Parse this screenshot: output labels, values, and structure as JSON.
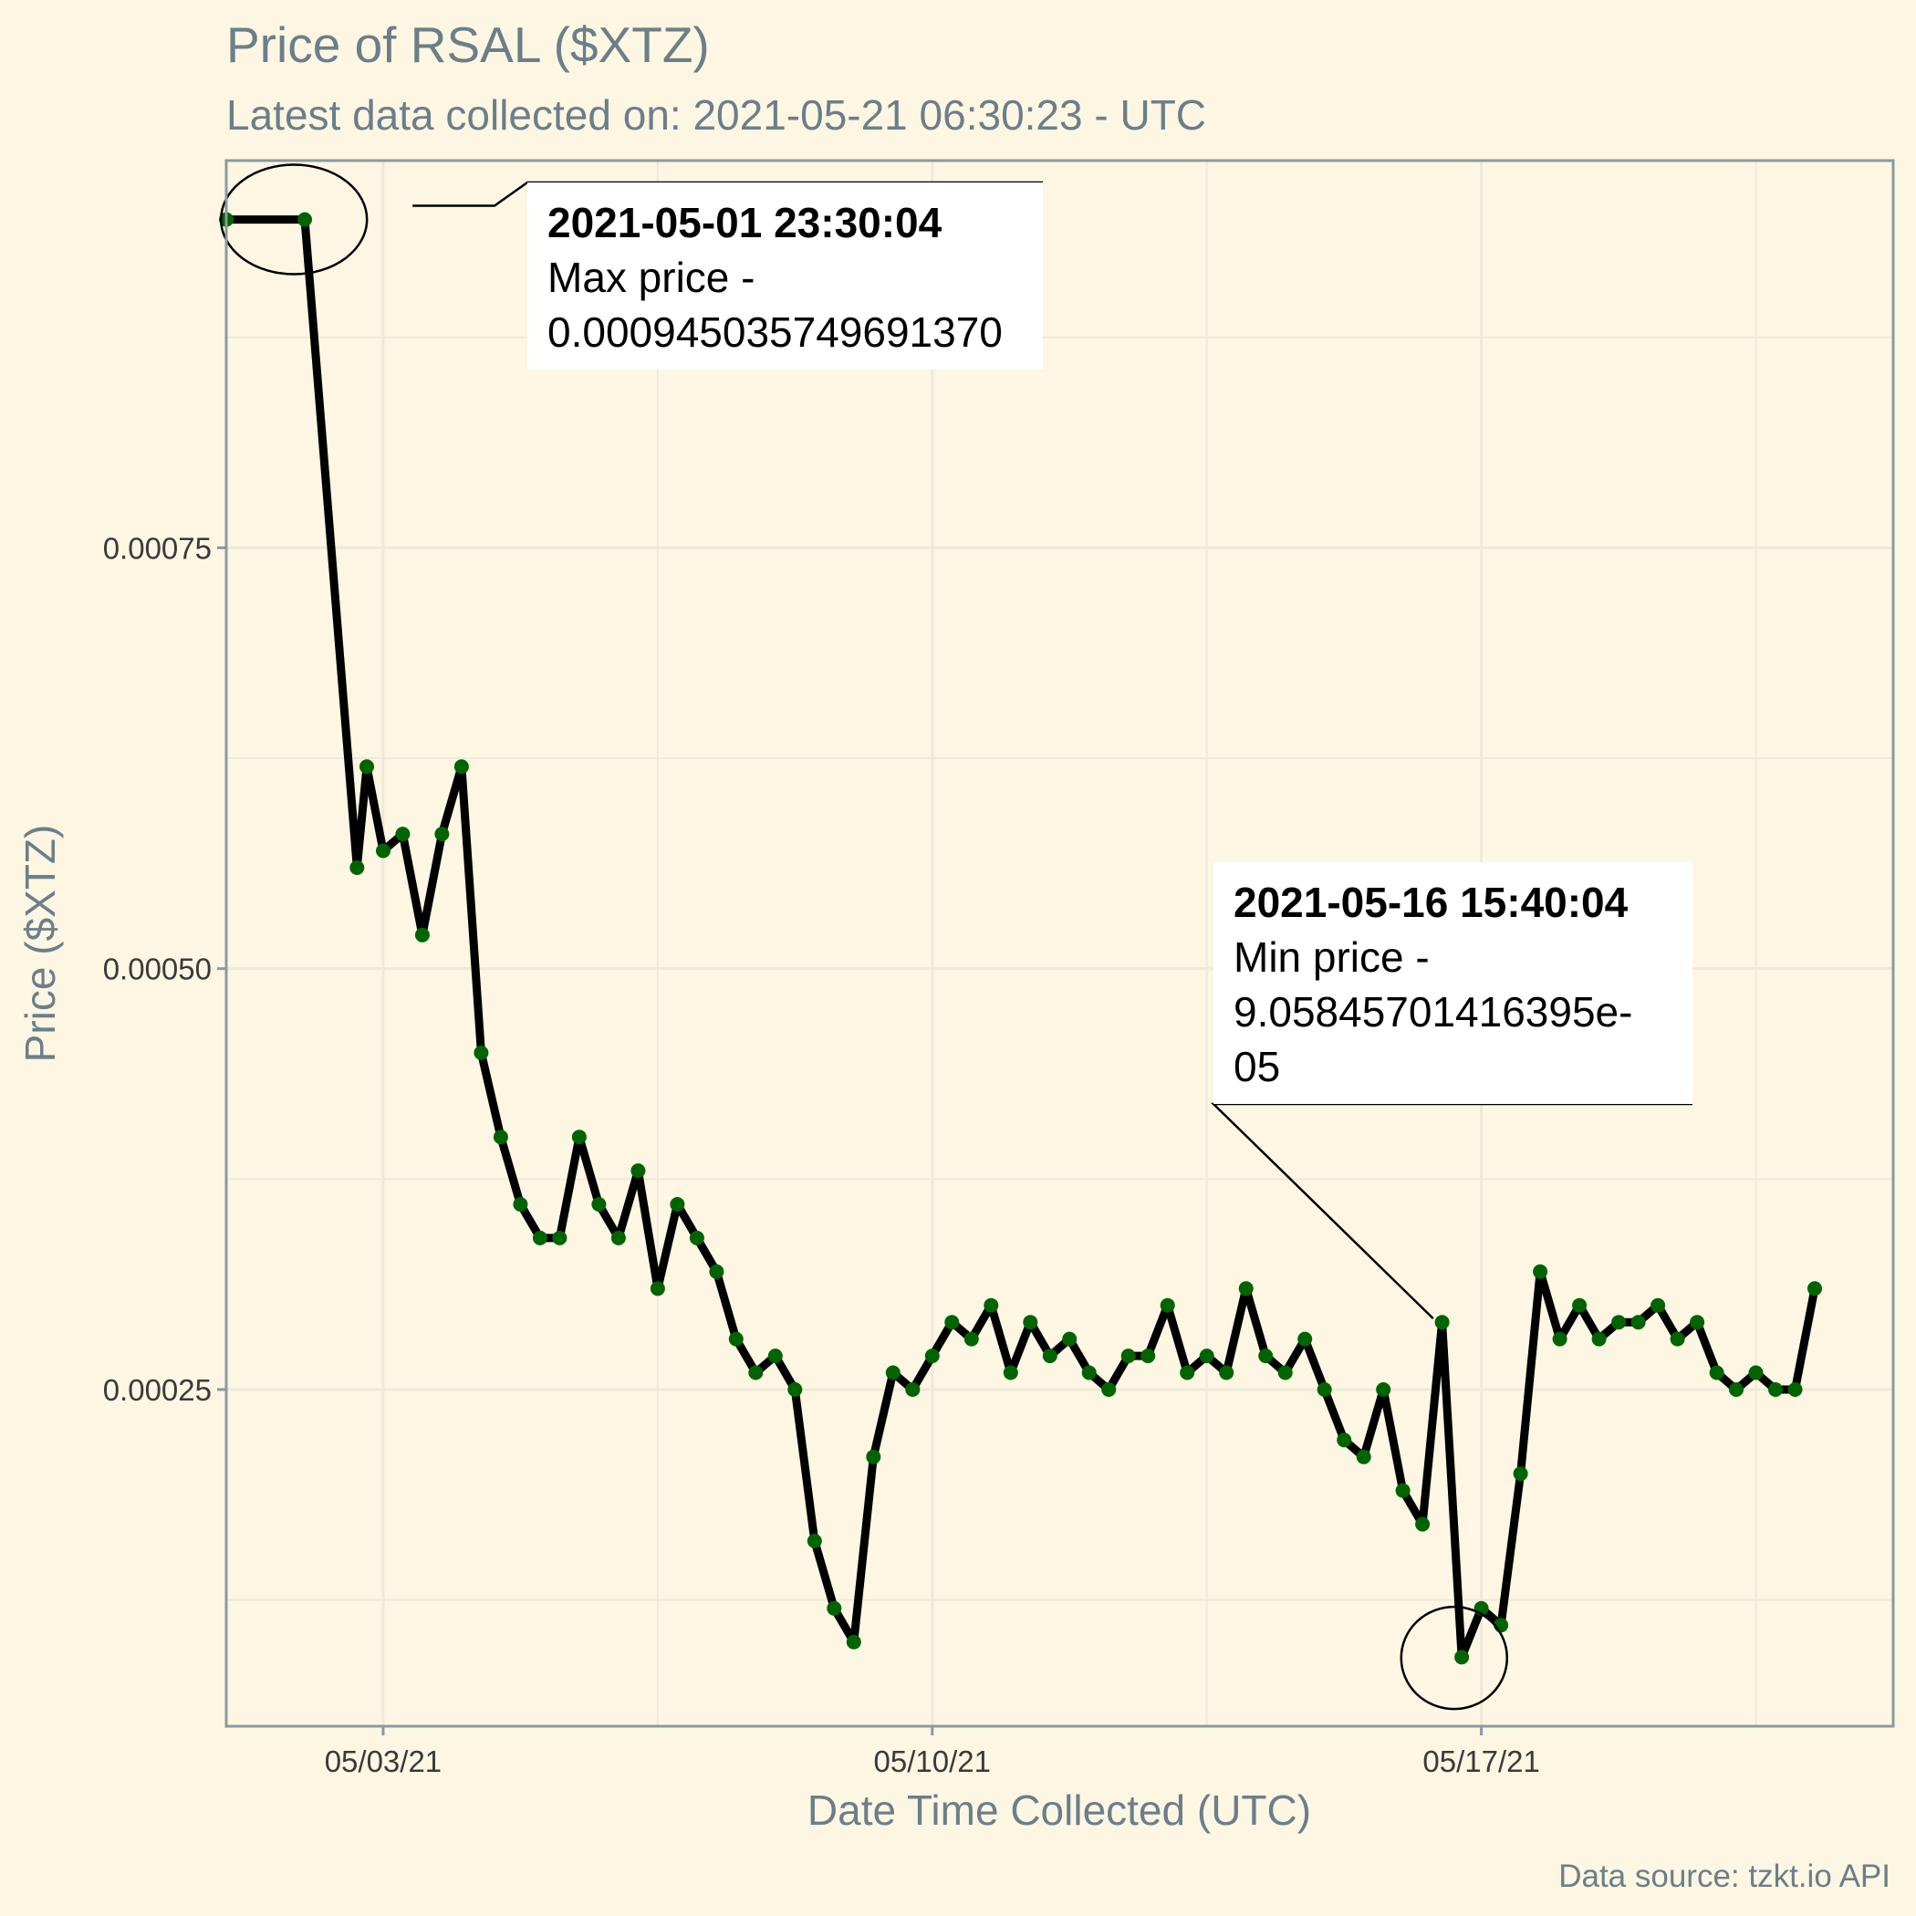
{
  "chart_data": {
    "type": "line",
    "title": "Price of RSAL ($XTZ)",
    "subtitle": "Latest data collected on: 2021-05-21 06:30:23  - UTC",
    "xlabel": "Date Time Collected (UTC)",
    "ylabel": "Price ($XTZ)",
    "caption": "Data source: tzkt.io API",
    "x_range": [
      "2021-05-01 00:00",
      "2021-05-22 06:00"
    ],
    "ylim": [
      5e-05,
      0.00098
    ],
    "x_ticks": [
      {
        "x": "2021-05-03",
        "label": "05/03/21"
      },
      {
        "x": "2021-05-10",
        "label": "05/10/21"
      },
      {
        "x": "2021-05-17",
        "label": "05/17/21"
      }
    ],
    "y_ticks": [
      {
        "y": 0.00025,
        "label": "0.00025"
      },
      {
        "y": 0.0005,
        "label": "0.00050"
      },
      {
        "y": 0.00075,
        "label": "0.00075"
      }
    ],
    "grid": true,
    "line_color": "#000000",
    "point_color": "#006400",
    "series": [
      {
        "x": [
          "2021-05-01 00:00",
          "2021-05-02 00:00",
          "2021-05-02 16:00",
          "2021-05-02 19:00",
          "2021-05-03 00:00",
          "2021-05-03 06:00",
          "2021-05-03 12:00",
          "2021-05-03 18:00",
          "2021-05-04 00:00",
          "2021-05-04 06:00",
          "2021-05-04 12:00",
          "2021-05-04 18:00",
          "2021-05-05 00:00",
          "2021-05-05 06:00",
          "2021-05-05 12:00",
          "2021-05-05 18:00",
          "2021-05-06 00:00",
          "2021-05-06 06:00",
          "2021-05-06 12:00",
          "2021-05-06 18:00",
          "2021-05-07 00:00",
          "2021-05-07 06:00",
          "2021-05-07 12:00",
          "2021-05-07 18:00",
          "2021-05-08 00:00",
          "2021-05-08 06:00",
          "2021-05-08 12:00",
          "2021-05-08 18:00",
          "2021-05-09 00:00",
          "2021-05-09 06:00",
          "2021-05-09 12:00",
          "2021-05-09 18:00",
          "2021-05-10 00:00",
          "2021-05-10 06:00",
          "2021-05-10 12:00",
          "2021-05-10 18:00",
          "2021-05-11 00:00",
          "2021-05-11 06:00",
          "2021-05-11 12:00",
          "2021-05-11 18:00",
          "2021-05-12 00:00",
          "2021-05-12 06:00",
          "2021-05-12 12:00",
          "2021-05-12 18:00",
          "2021-05-13 00:00",
          "2021-05-13 06:00",
          "2021-05-13 12:00",
          "2021-05-13 18:00",
          "2021-05-14 00:00",
          "2021-05-14 06:00",
          "2021-05-14 12:00",
          "2021-05-14 18:00",
          "2021-05-15 00:00",
          "2021-05-15 06:00",
          "2021-05-15 12:00",
          "2021-05-15 18:00",
          "2021-05-16 00:00",
          "2021-05-16 06:00",
          "2021-05-16 12:00",
          "2021-05-16 18:00",
          "2021-05-17 00:00",
          "2021-05-17 06:00",
          "2021-05-17 12:00",
          "2021-05-17 18:00",
          "2021-05-18 00:00",
          "2021-05-18 06:00",
          "2021-05-18 12:00",
          "2021-05-18 18:00",
          "2021-05-19 00:00",
          "2021-05-19 06:00",
          "2021-05-19 12:00",
          "2021-05-19 18:00",
          "2021-05-20 00:00",
          "2021-05-20 06:00",
          "2021-05-20 12:00",
          "2021-05-20 18:00",
          "2021-05-21 00:00",
          "2021-05-21 06:00"
        ],
        "values": [
          0.000945,
          0.000945,
          0.00056,
          0.00062,
          0.00057,
          0.00058,
          0.00052,
          0.00058,
          0.00062,
          0.00045,
          0.0004,
          0.00036,
          0.00034,
          0.00034,
          0.0004,
          0.00036,
          0.00034,
          0.00038,
          0.00031,
          0.00036,
          0.00034,
          0.00032,
          0.00028,
          0.00026,
          0.00027,
          0.00025,
          0.00016,
          0.00012,
          0.0001,
          0.00021,
          0.00026,
          0.00025,
          0.00027,
          0.00029,
          0.00028,
          0.0003,
          0.00026,
          0.00029,
          0.00027,
          0.00028,
          0.00026,
          0.00025,
          0.00027,
          0.00027,
          0.0003,
          0.00026,
          0.00027,
          0.00026,
          0.00031,
          0.00027,
          0.00026,
          0.00028,
          0.00025,
          0.00022,
          0.00021,
          0.00025,
          0.00019,
          0.00017,
          0.00029,
          9.1e-05,
          0.00012,
          0.00011,
          0.0002,
          0.00032,
          0.00028,
          0.0003,
          0.00028,
          0.00029,
          0.00029,
          0.0003,
          0.00028,
          0.00029,
          0.00026,
          0.00025,
          0.00026,
          0.00025,
          0.00025,
          0.00031
        ]
      }
    ],
    "annotations": [
      {
        "x": "2021-05-01 23:30:04",
        "y": 0.00094503574969137,
        "heading": "2021-05-01 23:30:04",
        "lines": [
          "Max price -",
          "0.000945035749691370"
        ]
      },
      {
        "x": "2021-05-16 15:40:04",
        "y": 9.05845701416395e-05,
        "heading": "2021-05-16 15:40:04",
        "lines": [
          "Min price -",
          "9.05845701416395e-",
          "05"
        ]
      }
    ]
  }
}
